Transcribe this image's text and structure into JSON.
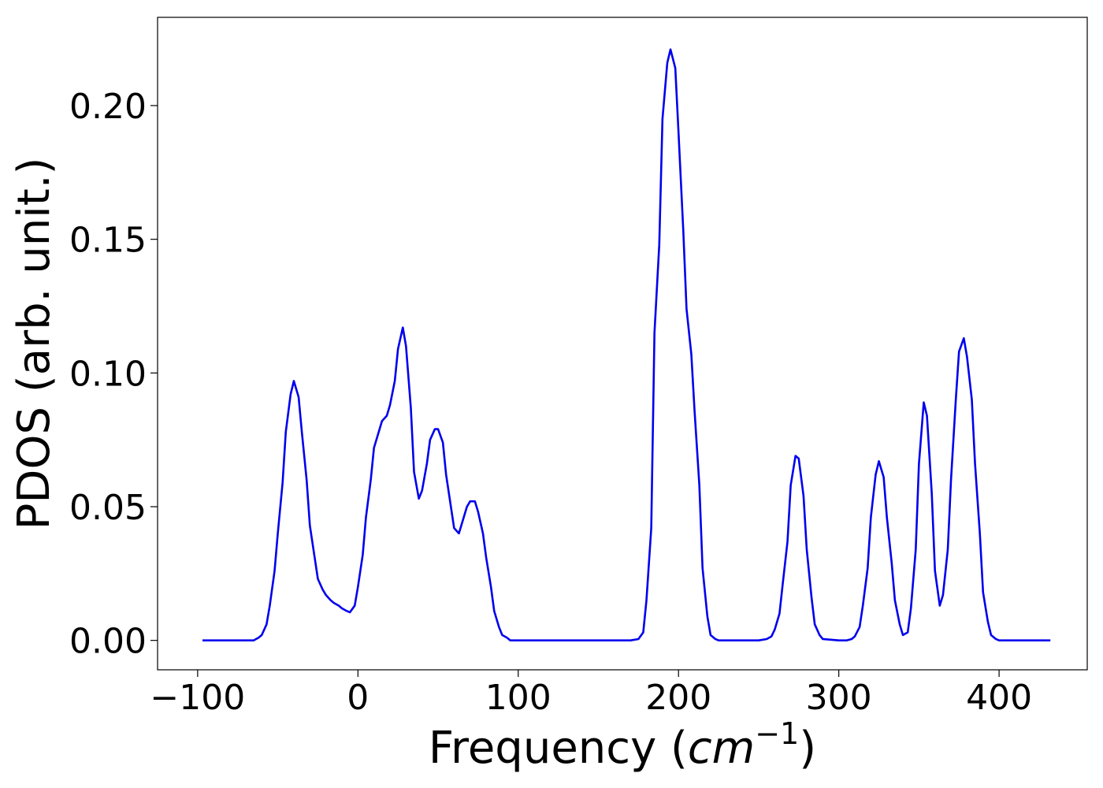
{
  "chart_data": {
    "type": "line",
    "title": "",
    "xlabel": "Frequency ($cm^{-1}$)",
    "xlabel_parts": {
      "prefix": "Frequency (",
      "math_base": "cm",
      "superscript": "−1",
      "suffix": ")"
    },
    "ylabel": "PDOS (arb. unit.)",
    "xlim": [
      -125,
      455
    ],
    "ylim": [
      -0.011,
      0.233
    ],
    "grid": false,
    "legend": "none",
    "colors": {
      "line": "#0000ee",
      "axes": "#000000",
      "background": "#ffffff"
    },
    "xticks": [
      {
        "value": -100,
        "label": "−100"
      },
      {
        "value": 0,
        "label": "0"
      },
      {
        "value": 100,
        "label": "100"
      },
      {
        "value": 200,
        "label": "200"
      },
      {
        "value": 300,
        "label": "300"
      },
      {
        "value": 400,
        "label": "400"
      }
    ],
    "yticks": [
      {
        "value": 0.0,
        "label": "0.00"
      },
      {
        "value": 0.05,
        "label": "0.05"
      },
      {
        "value": 0.1,
        "label": "0.10"
      },
      {
        "value": 0.15,
        "label": "0.15"
      },
      {
        "value": 0.2,
        "label": "0.20"
      }
    ],
    "series": [
      {
        "x": [
          -97,
          -65,
          -62,
          -60,
          -57,
          -55,
          -52,
          -50,
          -47,
          -45,
          -42,
          -40,
          -37,
          -35,
          -32,
          -30,
          -27,
          -25,
          -22,
          -20,
          -17,
          -15,
          -12,
          -10,
          -7,
          -5,
          -2,
          0,
          3,
          5,
          8,
          10,
          13,
          15,
          18,
          20,
          23,
          25,
          28,
          30,
          33,
          35,
          38,
          40,
          43,
          45,
          48,
          50,
          53,
          55,
          58,
          60,
          63,
          65,
          68,
          70,
          73,
          75,
          78,
          80,
          83,
          85,
          88,
          90,
          93,
          95,
          98,
          100,
          103,
          105,
          110,
          130,
          150,
          170,
          175,
          178,
          180,
          183,
          185,
          188,
          190,
          193,
          195,
          198,
          200,
          203,
          205,
          208,
          210,
          213,
          215,
          218,
          220,
          223,
          225,
          228,
          230,
          240,
          250,
          255,
          258,
          260,
          263,
          265,
          268,
          270,
          273,
          275,
          278,
          280,
          283,
          285,
          288,
          290,
          300,
          305,
          308,
          310,
          313,
          315,
          318,
          320,
          323,
          325,
          328,
          330,
          333,
          335,
          338,
          340,
          343,
          345,
          348,
          350,
          353,
          355,
          358,
          360,
          363,
          365,
          368,
          370,
          373,
          375,
          378,
          380,
          383,
          385,
          388,
          390,
          393,
          395,
          398,
          400,
          403,
          410,
          432
        ],
        "y": [
          0.0,
          0.0,
          0.001,
          0.002,
          0.006,
          0.013,
          0.026,
          0.04,
          0.059,
          0.078,
          0.092,
          0.097,
          0.091,
          0.078,
          0.06,
          0.043,
          0.031,
          0.023,
          0.019,
          0.017,
          0.015,
          0.014,
          0.013,
          0.012,
          0.011,
          0.0105,
          0.013,
          0.02,
          0.032,
          0.046,
          0.06,
          0.072,
          0.078,
          0.082,
          0.084,
          0.088,
          0.097,
          0.109,
          0.117,
          0.11,
          0.087,
          0.063,
          0.053,
          0.056,
          0.066,
          0.075,
          0.079,
          0.079,
          0.074,
          0.062,
          0.05,
          0.042,
          0.04,
          0.044,
          0.05,
          0.052,
          0.052,
          0.048,
          0.04,
          0.031,
          0.02,
          0.011,
          0.005,
          0.002,
          0.001,
          0.0,
          0.0,
          0.0,
          0.0,
          0.0,
          0.0,
          0.0,
          0.0,
          0.0,
          0.0005,
          0.003,
          0.015,
          0.042,
          0.115,
          0.148,
          0.195,
          0.216,
          0.221,
          0.214,
          0.19,
          0.153,
          0.124,
          0.107,
          0.086,
          0.058,
          0.027,
          0.009,
          0.002,
          0.0005,
          0.0,
          0.0,
          0.0,
          0.0,
          0.0,
          0.0005,
          0.0015,
          0.004,
          0.01,
          0.021,
          0.037,
          0.058,
          0.069,
          0.068,
          0.054,
          0.034,
          0.016,
          0.006,
          0.002,
          0.0005,
          0.0,
          0.0,
          0.0005,
          0.0015,
          0.005,
          0.013,
          0.027,
          0.046,
          0.062,
          0.067,
          0.061,
          0.046,
          0.029,
          0.015,
          0.006,
          0.002,
          0.003,
          0.012,
          0.034,
          0.066,
          0.089,
          0.084,
          0.055,
          0.026,
          0.013,
          0.017,
          0.034,
          0.06,
          0.09,
          0.108,
          0.113,
          0.106,
          0.09,
          0.066,
          0.04,
          0.018,
          0.007,
          0.002,
          0.0005,
          0.0,
          0.0,
          0.0,
          0.0
        ]
      }
    ]
  }
}
